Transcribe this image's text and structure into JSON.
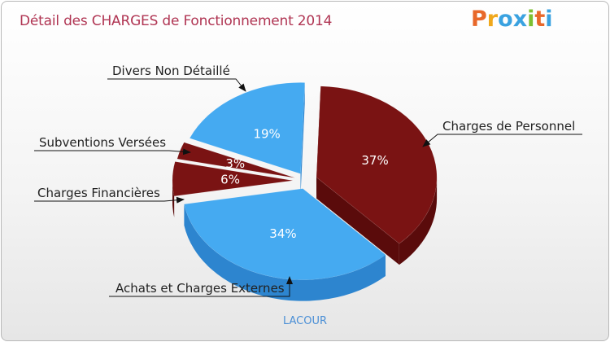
{
  "header": {
    "title": "Détail des CHARGES de Fonctionnement 2014",
    "logo_text": "Proxiti"
  },
  "footer": {
    "commune": "LACOUR"
  },
  "colors": {
    "title": "#b03553",
    "blue_top": "#45aaf1",
    "blue_side": "#2d85cf",
    "red_top": "#7a1313",
    "red_side": "#5a0b0b",
    "logo": [
      "#e8682a",
      "#f0a81c",
      "#3aa2e0",
      "#3aa2e0",
      "#7cbf31",
      "#e8682a",
      "#3aa2e0"
    ]
  },
  "chart_data": {
    "type": "pie",
    "style": "3d-exploded",
    "title": "Détail des CHARGES de Fonctionnement 2014",
    "slices": [
      {
        "label": "Charges de Personnel",
        "value": 37,
        "display": "37%",
        "color": "#7a1313"
      },
      {
        "label": "Achats et Charges Externes",
        "value": 34,
        "display": "34%",
        "color": "#45aaf1"
      },
      {
        "label": "Charges Financières",
        "value": 6,
        "display": "6%",
        "color": "#7a1313"
      },
      {
        "label": "Subventions Versées",
        "value": 3,
        "display": "3%",
        "color": "#7a1313"
      },
      {
        "label": "Divers Non Détaillé",
        "value": 19,
        "display": "19%",
        "color": "#45aaf1"
      }
    ]
  }
}
